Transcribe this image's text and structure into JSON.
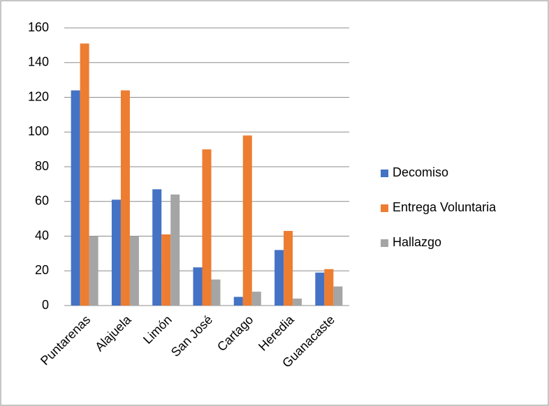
{
  "chart_data": {
    "type": "bar",
    "categories": [
      "Puntarenas",
      "Alajuela",
      "Limón",
      "San José",
      "Cartago",
      "Heredia",
      "Guanacaste"
    ],
    "series": [
      {
        "name": "Decomiso",
        "color": "#4472c4",
        "values": [
          124,
          61,
          67,
          22,
          5,
          32,
          19
        ]
      },
      {
        "name": "Entrega Voluntaria",
        "color": "#ed7d31",
        "values": [
          151,
          124,
          41,
          90,
          98,
          43,
          21
        ]
      },
      {
        "name": "Hallazgo",
        "color": "#a5a5a5",
        "values": [
          40,
          40,
          64,
          15,
          8,
          4,
          11
        ]
      }
    ],
    "ylim": [
      0,
      160
    ],
    "yticks": [
      0,
      20,
      40,
      60,
      80,
      100,
      120,
      140,
      160
    ],
    "grid": true,
    "legend": "right"
  }
}
